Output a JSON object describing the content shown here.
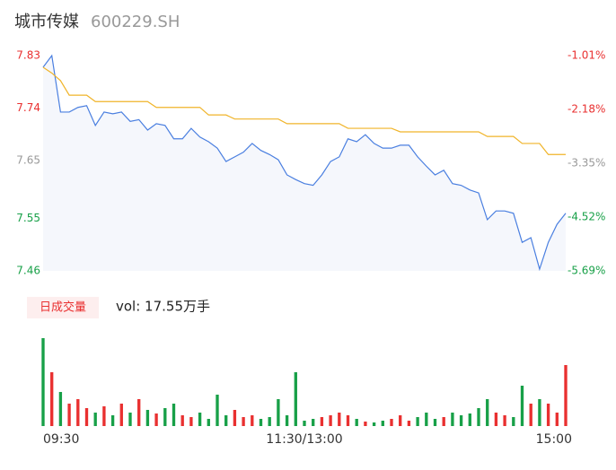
{
  "chart_data": {
    "type": "intraday",
    "title": "城市传媒",
    "subtitle": "600229.SH",
    "volume_title": "日成交量",
    "volume_summary": "vol: 17.55万手",
    "x": [
      0,
      4,
      8,
      12,
      16,
      20,
      24,
      28,
      32,
      36,
      40,
      44,
      48,
      52,
      56,
      60,
      64,
      68,
      72,
      76,
      80,
      84,
      88,
      92,
      96,
      100,
      104,
      108,
      112,
      116,
      120,
      124,
      128,
      132,
      136,
      140,
      144,
      148,
      152,
      156,
      160,
      164,
      168,
      172,
      176,
      180,
      184,
      188,
      192,
      196,
      200,
      204,
      208,
      212,
      216,
      220,
      224,
      228,
      232,
      236,
      240
    ],
    "xlim": [
      0,
      240
    ],
    "xticks": [
      {
        "value": 0,
        "label": "09:30"
      },
      {
        "value": 120,
        "label": "11:30/13:00"
      },
      {
        "value": 240,
        "label": "15:00"
      }
    ],
    "ylim": [
      7.46,
      7.83
    ],
    "yticks": [
      7.46,
      7.55,
      7.65,
      7.74,
      7.83
    ],
    "ytick_colors": [
      "#18a048",
      "#18a048",
      "#999999",
      "#e93030",
      "#e93030"
    ],
    "y2lim": [
      -5.69,
      -1.01
    ],
    "y2ticks": [
      {
        "value": -5.69,
        "label": "-5.69%"
      },
      {
        "value": -4.52,
        "label": "-4.52%"
      },
      {
        "value": -3.35,
        "label": "-3.35%"
      },
      {
        "value": -2.18,
        "label": "-2.18%"
      },
      {
        "value": -1.01,
        "label": "-1.01%"
      }
    ],
    "y2tick_colors": [
      "#18a048",
      "#18a048",
      "#999999",
      "#e93030",
      "#e93030"
    ],
    "area_color": "#f5f7fc",
    "series": [
      {
        "color": "#4a7fe0",
        "values": [
          7.81,
          7.83,
          7.733,
          7.733,
          7.741,
          7.744,
          7.71,
          7.733,
          7.73,
          7.733,
          7.717,
          7.72,
          7.702,
          7.713,
          7.71,
          7.687,
          7.687,
          7.705,
          7.69,
          7.682,
          7.671,
          7.648,
          7.656,
          7.664,
          7.679,
          7.667,
          7.66,
          7.651,
          7.625,
          7.617,
          7.61,
          7.607,
          7.625,
          7.648,
          7.656,
          7.687,
          7.682,
          7.694,
          7.679,
          7.671,
          7.671,
          7.676,
          7.676,
          7.656,
          7.64,
          7.625,
          7.633,
          7.61,
          7.607,
          7.599,
          7.594,
          7.548,
          7.563,
          7.563,
          7.559,
          7.509,
          7.517,
          7.463,
          7.509,
          7.54,
          7.559
        ]
      },
      {
        "color": "#f0b429",
        "values": [
          7.81,
          7.8,
          7.787,
          7.762,
          7.762,
          7.762,
          7.751,
          7.751,
          7.751,
          7.751,
          7.751,
          7.751,
          7.751,
          7.741,
          7.741,
          7.741,
          7.741,
          7.741,
          7.741,
          7.728,
          7.728,
          7.728,
          7.721,
          7.721,
          7.721,
          7.721,
          7.721,
          7.721,
          7.713,
          7.713,
          7.713,
          7.713,
          7.713,
          7.713,
          7.713,
          7.705,
          7.705,
          7.705,
          7.705,
          7.705,
          7.705,
          7.699,
          7.699,
          7.699,
          7.699,
          7.699,
          7.699,
          7.699,
          7.699,
          7.699,
          7.699,
          7.691,
          7.691,
          7.691,
          7.691,
          7.679,
          7.679,
          7.679,
          7.66,
          7.66,
          7.66
        ]
      }
    ],
    "volume": {
      "ylim": [
        0,
        20000
      ],
      "up_color": "#e93030",
      "down_color": "#18a048",
      "values": [
        19600,
        12000,
        7600,
        5000,
        6000,
        4000,
        3000,
        4400,
        2400,
        5000,
        3000,
        6000,
        3600,
        2800,
        4000,
        5000,
        2400,
        2000,
        3000,
        1600,
        7000,
        2400,
        3600,
        2000,
        2400,
        1600,
        2000,
        6000,
        2400,
        12000,
        1200,
        1600,
        2000,
        2400,
        3000,
        2400,
        1600,
        1000,
        800,
        1200,
        1600,
        2400,
        1200,
        2000,
        3000,
        1600,
        2000,
        3000,
        2400,
        2800,
        4000,
        6000,
        3000,
        2400,
        2000,
        9000,
        5000,
        6000,
        5000,
        3000,
        13600
      ]
    }
  }
}
